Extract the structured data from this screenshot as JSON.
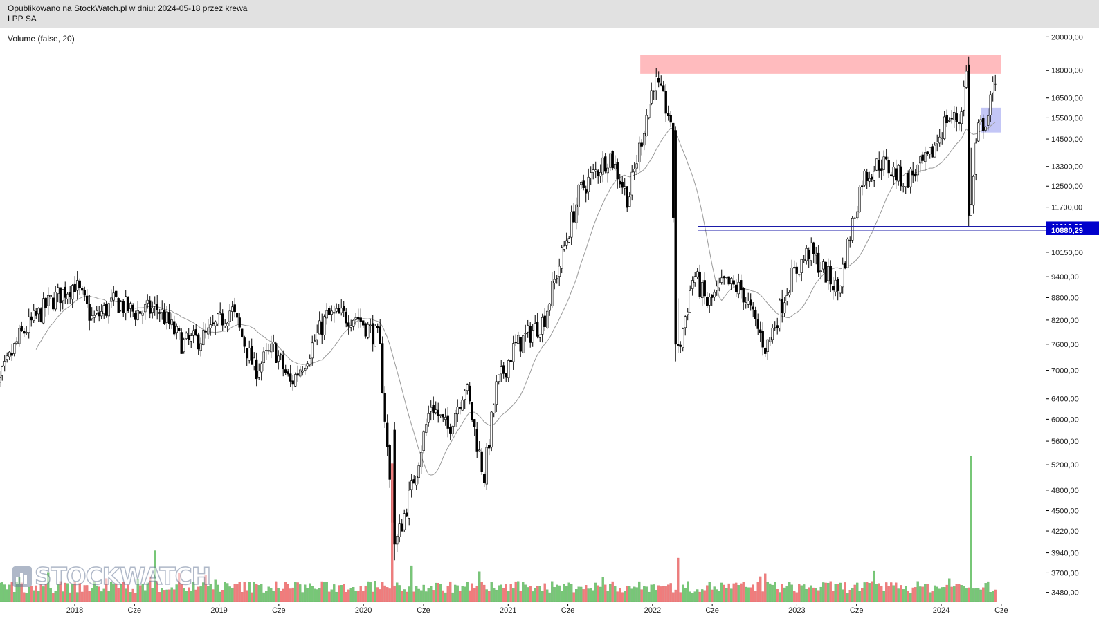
{
  "header": {
    "published": "Opublikowano na StockWatch.pl w dniu: 2024-05-18 przez krewa",
    "symbol": "LPP SA"
  },
  "indicator_label": "Volume (false, 20)",
  "watermark": "STOCKWATCH",
  "colors": {
    "up": "#77c777",
    "down": "#f07c7c",
    "wick": "#000000",
    "ma": "#999999",
    "resistance_zone": "#ffb7bb",
    "support_zone": "#b9bcf5",
    "support_lines": "#1a1aa8",
    "price_tag_bg": "#0000cc"
  },
  "chart_data": {
    "type": "candlestick",
    "yscale": "log",
    "ylim": [
      3380,
      20500
    ],
    "y_ticks": [
      "20000,00",
      "18000,00",
      "16500,00",
      "15500,00",
      "14500,00",
      "13300,00",
      "12500,00",
      "11700,00",
      "10150,00",
      "9400,00",
      "8800,00",
      "8200,00",
      "7600,00",
      "7000,00",
      "6400,00",
      "6000,00",
      "5600,00",
      "5200,00",
      "4800,00",
      "4500,00",
      "4220,00",
      "3940,00",
      "3700,00",
      "3480,00"
    ],
    "x_ticks": [
      "2018",
      "Cze",
      "2019",
      "Cze",
      "2020",
      "Cze",
      "2021",
      "Cze",
      "2022",
      "Cze",
      "2023",
      "Cze",
      "2024",
      "Cze"
    ],
    "moving_average_period": 20,
    "price_path": [
      [
        "2017-06-01",
        6300
      ],
      [
        "2017-08-15",
        7800
      ],
      [
        "2017-11-01",
        8700
      ],
      [
        "2018-01-01",
        9200
      ],
      [
        "2018-02-15",
        8200
      ],
      [
        "2018-04-15",
        8700
      ],
      [
        "2018-06-01",
        8400
      ],
      [
        "2018-08-01",
        8500
      ],
      [
        "2018-10-01",
        7600
      ],
      [
        "2018-12-01",
        7800
      ],
      [
        "2019-02-01",
        8500
      ],
      [
        "2019-04-01",
        7000
      ],
      [
        "2019-05-20",
        7500
      ],
      [
        "2019-07-01",
        6700
      ],
      [
        "2019-08-15",
        7400
      ],
      [
        "2019-10-01",
        8300
      ],
      [
        "2019-12-15",
        8300
      ],
      [
        "2020-02-10",
        7700
      ],
      [
        "2020-03-20",
        4000
      ],
      [
        "2020-05-01",
        4800
      ],
      [
        "2020-06-20",
        6300
      ],
      [
        "2020-08-01",
        5800
      ],
      [
        "2020-09-15",
        6700
      ],
      [
        "2020-11-01",
        5000
      ],
      [
        "2020-12-01",
        6600
      ],
      [
        "2021-01-15",
        7500
      ],
      [
        "2021-04-01",
        8200
      ],
      [
        "2021-07-01",
        12300
      ],
      [
        "2021-09-15",
        13800
      ],
      [
        "2021-11-01",
        12000
      ],
      [
        "2022-01-05",
        17500
      ],
      [
        "2022-02-15",
        15500
      ],
      [
        "2022-03-05",
        7300
      ],
      [
        "2022-04-15",
        9500
      ],
      [
        "2022-05-20",
        8600
      ],
      [
        "2022-07-01",
        9200
      ],
      [
        "2022-08-15",
        9000
      ],
      [
        "2022-10-15",
        7500
      ],
      [
        "2022-12-15",
        9300
      ],
      [
        "2023-02-01",
        10200
      ],
      [
        "2023-04-15",
        9000
      ],
      [
        "2023-06-15",
        12800
      ],
      [
        "2023-08-01",
        13500
      ],
      [
        "2023-10-01",
        12700
      ],
      [
        "2023-12-01",
        13600
      ],
      [
        "2024-01-15",
        15500
      ],
      [
        "2024-02-15",
        15400
      ],
      [
        "2024-03-05",
        17900
      ],
      [
        "2024-03-15",
        11400
      ],
      [
        "2024-04-01",
        14800
      ],
      [
        "2024-04-30",
        15700
      ],
      [
        "2024-05-17",
        17700
      ]
    ],
    "candles": [
      {
        "date": "2020-03-19",
        "o": 5800,
        "h": 5950,
        "l": 3850,
        "c": 4050
      },
      {
        "date": "2022-03-01",
        "o": 14900,
        "h": 15100,
        "l": 7200,
        "c": 7600
      },
      {
        "date": "2024-03-08",
        "o": 18300,
        "h": 18800,
        "l": 11000,
        "c": 11400
      }
    ],
    "volume_spikes": [
      {
        "date": "2020-03-16",
        "rel": 0.95
      },
      {
        "date": "2024-03-14",
        "rel": 1.0
      },
      {
        "date": "2018-07-20",
        "rel": 0.35
      },
      {
        "date": "2022-03-07",
        "rel": 0.3
      }
    ],
    "annotations": [
      {
        "type": "zone",
        "name": "resistance",
        "x0": "2021-12-01",
        "x1": "2024-05-31",
        "y0": 17800,
        "y1": 18900
      },
      {
        "type": "zone",
        "name": "support",
        "x0": "2024-04-10",
        "x1": "2024-05-31",
        "y0": 14800,
        "y1": 16000
      },
      {
        "type": "hline",
        "name": "support-11012",
        "x0": "2022-04-25",
        "value": 11012.32,
        "label": "11012,32"
      },
      {
        "type": "hline",
        "name": "support-10880",
        "x0": "2022-04-25",
        "value": 10880.29,
        "label": "10880,29"
      }
    ],
    "last_date": "2024-05-17"
  }
}
